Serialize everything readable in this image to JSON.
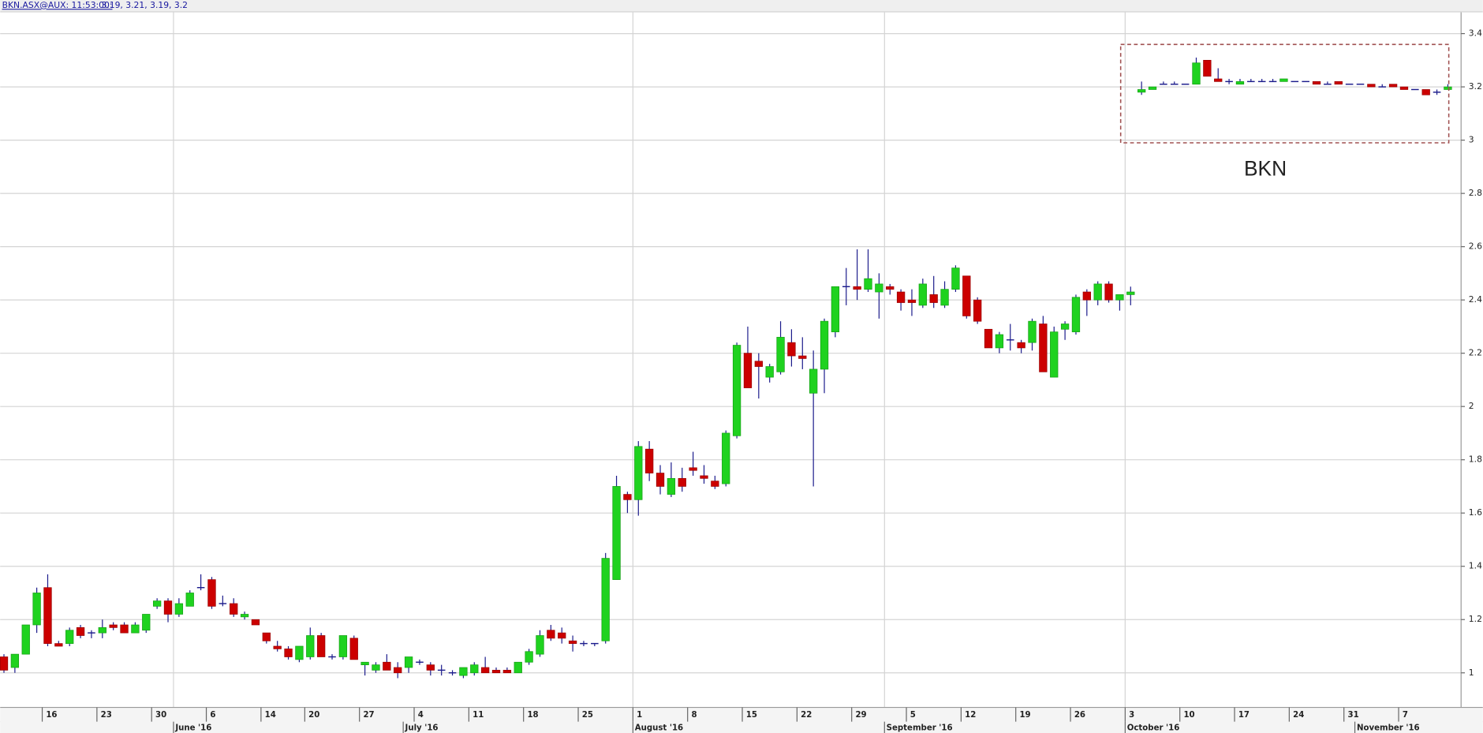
{
  "chart_data": {
    "type": "candlestick",
    "header": {
      "symbol_time": "BKN.ASX@AUX: 11:53:00:",
      "quote": "3.19, 3.21, 3.19, 3.2"
    },
    "annotation": "BKN",
    "ylim": [
      0.87,
      3.48
    ],
    "yticks": [
      1,
      1.2,
      1.4,
      1.6,
      1.8,
      2,
      2.2,
      2.4,
      2.6,
      2.8,
      3,
      3.2,
      3.4
    ],
    "grid": true,
    "up_color": "#1fd21f",
    "down_color": "#cc0000",
    "wick_color": "#1c1c8c",
    "categories": [
      null,
      null,
      null,
      null,
      "16",
      null,
      null,
      null,
      null,
      "23",
      null,
      null,
      null,
      null,
      "30",
      null,
      null,
      null,
      null,
      "6",
      null,
      null,
      null,
      null,
      "14",
      null,
      null,
      null,
      "20",
      null,
      null,
      null,
      null,
      "27",
      null,
      null,
      null,
      null,
      "4",
      null,
      null,
      null,
      null,
      "11",
      null,
      null,
      null,
      null,
      "18",
      null,
      null,
      null,
      null,
      "25",
      null,
      null,
      null,
      null,
      "1",
      null,
      null,
      null,
      null,
      "8",
      null,
      null,
      null,
      null,
      "15",
      null,
      null,
      null,
      null,
      "22",
      null,
      null,
      null,
      null,
      "29",
      null,
      null,
      null,
      null,
      "5",
      null,
      null,
      null,
      null,
      "12",
      null,
      null,
      null,
      null,
      "19",
      null,
      null,
      null,
      null,
      "26",
      null,
      null,
      null,
      null,
      "3",
      null,
      null,
      null,
      null,
      "10",
      null,
      null,
      null,
      null,
      "17",
      null,
      null,
      null,
      null,
      "24",
      null,
      null,
      null,
      null,
      "31",
      null,
      null,
      null,
      null,
      "7",
      null,
      null,
      null,
      null
    ],
    "months": [
      {
        "at": 16,
        "label": "June '16",
        "gridline": true
      },
      {
        "at": 37,
        "label": "July '16",
        "gridline": false
      },
      {
        "at": 58,
        "label": "August '16",
        "gridline": true
      },
      {
        "at": 81,
        "label": "September '16",
        "gridline": true
      },
      {
        "at": 103,
        "label": "October '16",
        "gridline": true
      },
      {
        "at": 124,
        "label": "November '16",
        "gridline": false
      }
    ],
    "ohlc": [
      [
        1.06,
        1.07,
        1.0,
        1.01
      ],
      [
        1.02,
        1.07,
        1.0,
        1.07
      ],
      [
        1.07,
        1.18,
        1.07,
        1.18
      ],
      [
        1.18,
        1.32,
        1.15,
        1.3
      ],
      [
        1.32,
        1.37,
        1.1,
        1.11
      ],
      [
        1.11,
        1.12,
        1.1,
        1.1
      ],
      [
        1.11,
        1.17,
        1.1,
        1.16
      ],
      [
        1.17,
        1.18,
        1.13,
        1.14
      ],
      [
        1.15,
        1.16,
        1.13,
        1.15
      ],
      [
        1.15,
        1.2,
        1.13,
        1.17
      ],
      [
        1.18,
        1.19,
        1.16,
        1.17
      ],
      [
        1.18,
        1.19,
        1.15,
        1.15
      ],
      [
        1.15,
        1.19,
        1.15,
        1.18
      ],
      [
        1.16,
        1.22,
        1.15,
        1.22
      ],
      [
        1.25,
        1.28,
        1.24,
        1.27
      ],
      [
        1.27,
        1.28,
        1.19,
        1.22
      ],
      [
        1.22,
        1.28,
        1.21,
        1.26
      ],
      [
        1.25,
        1.31,
        1.25,
        1.3
      ],
      [
        1.32,
        1.37,
        1.31,
        1.32
      ],
      [
        1.35,
        1.36,
        1.24,
        1.25
      ],
      [
        1.26,
        1.29,
        1.25,
        1.26
      ],
      [
        1.26,
        1.28,
        1.21,
        1.22
      ],
      [
        1.21,
        1.23,
        1.2,
        1.22
      ],
      [
        1.2,
        1.2,
        1.18,
        1.18
      ],
      [
        1.15,
        1.15,
        1.11,
        1.12
      ],
      [
        1.1,
        1.12,
        1.08,
        1.09
      ],
      [
        1.09,
        1.1,
        1.05,
        1.06
      ],
      [
        1.05,
        1.1,
        1.04,
        1.1
      ],
      [
        1.06,
        1.17,
        1.05,
        1.14
      ],
      [
        1.14,
        1.15,
        1.06,
        1.06
      ],
      [
        1.06,
        1.07,
        1.05,
        1.06
      ],
      [
        1.06,
        1.14,
        1.05,
        1.14
      ],
      [
        1.13,
        1.14,
        1.05,
        1.05
      ],
      [
        1.03,
        1.04,
        0.99,
        1.04
      ],
      [
        1.01,
        1.04,
        1.0,
        1.03
      ],
      [
        1.04,
        1.07,
        1.01,
        1.01
      ],
      [
        1.02,
        1.04,
        0.98,
        1.0
      ],
      [
        1.02,
        1.06,
        1.0,
        1.06
      ],
      [
        1.04,
        1.05,
        1.03,
        1.04
      ],
      [
        1.03,
        1.04,
        0.99,
        1.01
      ],
      [
        1.01,
        1.03,
        0.99,
        1.01
      ],
      [
        1.0,
        1.01,
        0.99,
        1.0
      ],
      [
        0.99,
        1.02,
        0.98,
        1.02
      ],
      [
        1.0,
        1.04,
        0.99,
        1.03
      ],
      [
        1.02,
        1.06,
        1.0,
        1.0
      ],
      [
        1.01,
        1.02,
        1.0,
        1.0
      ],
      [
        1.01,
        1.02,
        1.0,
        1.0
      ],
      [
        1.0,
        1.04,
        1.0,
        1.04
      ],
      [
        1.04,
        1.09,
        1.03,
        1.08
      ],
      [
        1.07,
        1.16,
        1.06,
        1.14
      ],
      [
        1.16,
        1.18,
        1.12,
        1.13
      ],
      [
        1.15,
        1.17,
        1.11,
        1.13
      ],
      [
        1.12,
        1.14,
        1.08,
        1.11
      ],
      [
        1.11,
        1.12,
        1.1,
        1.11
      ],
      [
        1.11,
        1.11,
        1.1,
        1.11
      ],
      [
        1.12,
        1.45,
        1.11,
        1.43
      ],
      [
        1.35,
        1.74,
        1.35,
        1.7
      ],
      [
        1.67,
        1.68,
        1.6,
        1.65
      ],
      [
        1.65,
        1.87,
        1.59,
        1.85
      ],
      [
        1.84,
        1.87,
        1.72,
        1.75
      ],
      [
        1.75,
        1.78,
        1.67,
        1.7
      ],
      [
        1.67,
        1.79,
        1.66,
        1.73
      ],
      [
        1.73,
        1.77,
        1.68,
        1.7
      ],
      [
        1.77,
        1.83,
        1.74,
        1.76
      ],
      [
        1.74,
        1.78,
        1.71,
        1.73
      ],
      [
        1.72,
        1.74,
        1.69,
        1.7
      ],
      [
        1.71,
        1.91,
        1.7,
        1.9
      ],
      [
        1.89,
        2.24,
        1.88,
        2.23
      ],
      [
        2.2,
        2.3,
        2.07,
        2.07
      ],
      [
        2.17,
        2.2,
        2.03,
        2.15
      ],
      [
        2.11,
        2.16,
        2.09,
        2.15
      ],
      [
        2.13,
        2.32,
        2.12,
        2.26
      ],
      [
        2.24,
        2.29,
        2.15,
        2.19
      ],
      [
        2.19,
        2.26,
        2.14,
        2.18
      ],
      [
        2.05,
        2.21,
        1.7,
        2.14
      ],
      [
        2.14,
        2.33,
        2.05,
        2.32
      ],
      [
        2.28,
        2.45,
        2.26,
        2.45
      ],
      [
        2.45,
        2.52,
        2.38,
        2.45
      ],
      [
        2.45,
        2.59,
        2.4,
        2.44
      ],
      [
        2.44,
        2.59,
        2.43,
        2.48
      ],
      [
        2.43,
        2.5,
        2.33,
        2.46
      ],
      [
        2.45,
        2.46,
        2.42,
        2.44
      ],
      [
        2.43,
        2.44,
        2.36,
        2.39
      ],
      [
        2.4,
        2.44,
        2.34,
        2.39
      ],
      [
        2.38,
        2.48,
        2.37,
        2.46
      ],
      [
        2.42,
        2.49,
        2.37,
        2.39
      ],
      [
        2.38,
        2.47,
        2.37,
        2.44
      ],
      [
        2.44,
        2.53,
        2.43,
        2.52
      ],
      [
        2.49,
        2.49,
        2.33,
        2.34
      ],
      [
        2.4,
        2.41,
        2.31,
        2.32
      ],
      [
        2.29,
        2.29,
        2.22,
        2.22
      ],
      [
        2.22,
        2.28,
        2.2,
        2.27
      ],
      [
        2.25,
        2.31,
        2.21,
        2.25
      ],
      [
        2.24,
        2.25,
        2.2,
        2.22
      ],
      [
        2.24,
        2.33,
        2.21,
        2.32
      ],
      [
        2.31,
        2.34,
        2.13,
        2.13
      ],
      [
        2.11,
        2.3,
        2.11,
        2.28
      ],
      [
        2.29,
        2.32,
        2.25,
        2.31
      ],
      [
        2.28,
        2.42,
        2.27,
        2.41
      ],
      [
        2.43,
        2.44,
        2.34,
        2.4
      ],
      [
        2.4,
        2.47,
        2.38,
        2.46
      ],
      [
        2.46,
        2.47,
        2.39,
        2.4
      ],
      [
        2.4,
        2.42,
        2.36,
        2.42
      ],
      [
        2.42,
        2.45,
        2.38,
        2.43
      ],
      [
        3.18,
        3.22,
        3.17,
        3.19
      ],
      [
        3.19,
        3.2,
        3.19,
        3.2
      ],
      [
        3.21,
        3.22,
        3.21,
        3.21
      ],
      [
        3.21,
        3.22,
        3.21,
        3.21
      ],
      [
        3.21,
        3.21,
        3.21,
        3.21
      ],
      [
        3.21,
        3.31,
        3.21,
        3.29
      ],
      [
        3.3,
        3.3,
        3.24,
        3.24
      ],
      [
        3.23,
        3.27,
        3.22,
        3.22
      ],
      [
        3.22,
        3.23,
        3.21,
        3.22
      ],
      [
        3.21,
        3.23,
        3.21,
        3.22
      ],
      [
        3.22,
        3.23,
        3.22,
        3.22
      ],
      [
        3.22,
        3.23,
        3.22,
        3.22
      ],
      [
        3.22,
        3.23,
        3.22,
        3.22
      ],
      [
        3.22,
        3.23,
        3.22,
        3.23
      ],
      [
        3.22,
        3.22,
        3.22,
        3.22
      ],
      [
        3.22,
        3.22,
        3.22,
        3.22
      ],
      [
        3.22,
        3.22,
        3.21,
        3.21
      ],
      [
        3.21,
        3.22,
        3.21,
        3.21
      ],
      [
        3.22,
        3.22,
        3.21,
        3.21
      ],
      [
        3.21,
        3.21,
        3.21,
        3.21
      ],
      [
        3.21,
        3.21,
        3.21,
        3.21
      ],
      [
        3.21,
        3.21,
        3.2,
        3.2
      ],
      [
        3.2,
        3.21,
        3.2,
        3.2
      ],
      [
        3.21,
        3.21,
        3.2,
        3.2
      ],
      [
        3.2,
        3.2,
        3.19,
        3.19
      ],
      [
        3.19,
        3.19,
        3.19,
        3.19
      ],
      [
        3.19,
        3.19,
        3.17,
        3.17
      ],
      [
        3.18,
        3.19,
        3.17,
        3.18
      ],
      [
        3.19,
        3.21,
        3.19,
        3.2
      ]
    ]
  }
}
